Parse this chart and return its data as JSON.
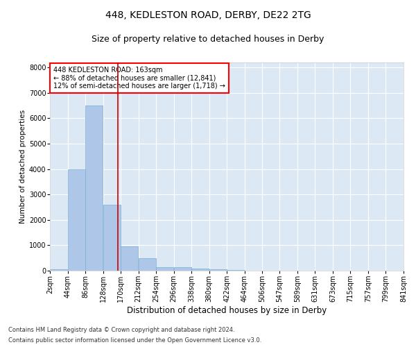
{
  "title1": "448, KEDLESTON ROAD, DERBY, DE22 2TG",
  "title2": "Size of property relative to detached houses in Derby",
  "xlabel": "Distribution of detached houses by size in Derby",
  "ylabel": "Number of detached properties",
  "footer1": "Contains HM Land Registry data © Crown copyright and database right 2024.",
  "footer2": "Contains public sector information licensed under the Open Government Licence v3.0.",
  "annotation_line1": "448 KEDLESTON ROAD: 163sqm",
  "annotation_line2": "← 88% of detached houses are smaller (12,841)",
  "annotation_line3": "12% of semi-detached houses are larger (1,718) →",
  "bar_color": "#aec6e8",
  "bar_edge_color": "#7bafd4",
  "bg_color": "#dce9f5",
  "vline_color": "#cc0000",
  "vline_x": 163,
  "bins": [
    2,
    44,
    86,
    128,
    170,
    212,
    254,
    296,
    338,
    380,
    422,
    464,
    506,
    547,
    589,
    631,
    673,
    715,
    757,
    799,
    841
  ],
  "counts": [
    50,
    4000,
    6500,
    2600,
    950,
    490,
    145,
    125,
    75,
    50,
    25,
    8,
    4,
    2,
    1,
    0,
    0,
    0,
    0,
    0
  ],
  "ylim": [
    0,
    8200
  ],
  "yticks": [
    0,
    1000,
    2000,
    3000,
    4000,
    5000,
    6000,
    7000,
    8000
  ],
  "tick_label_fontsize": 7,
  "title_fontsize1": 10,
  "title_fontsize2": 9,
  "xlabel_fontsize": 8.5,
  "ylabel_fontsize": 7.5,
  "annotation_fontsize": 7,
  "footer_fontsize": 6
}
